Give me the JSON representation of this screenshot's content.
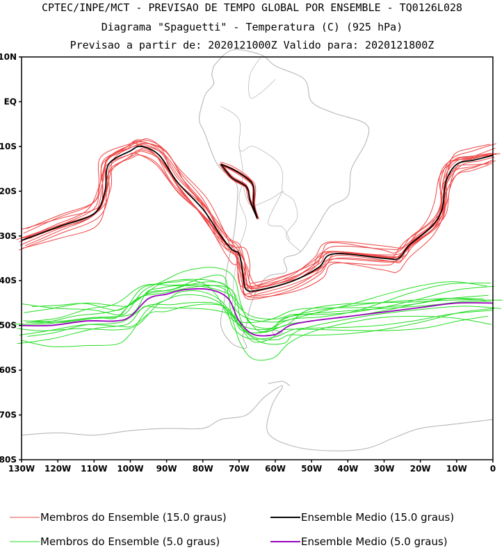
{
  "header": {
    "title_line1": "CPTEC/INPE/MCT - PREVISAO DE TEMPO GLOBAL POR ENSEMBLE - TQ0126L028",
    "title_line2": "Diagrama \"Spaguetti\" - Temperatura (C) (925 hPa)",
    "title_line3": "Previsao a partir de: 2020121000Z  Valido para: 2020121800Z"
  },
  "map": {
    "lat_labels": [
      "10N",
      "EQ",
      "10S",
      "20S",
      "30S",
      "40S",
      "50S",
      "60S",
      "70S",
      "80S"
    ],
    "lon_labels": [
      "130W",
      "120W",
      "110W",
      "100W",
      "90W",
      "80W",
      "70W",
      "60W",
      "50W",
      "40W",
      "30W",
      "20W",
      "10W",
      "0"
    ],
    "lat_range": [
      10,
      -80
    ],
    "lon_range": [
      -130,
      0
    ]
  },
  "legend": {
    "members_15_label": "Membros do Ensemble (15.0 graus)",
    "mean_15_label": "Ensemble Medio (15.0 graus)",
    "members_5_label": "Membros do Ensemble (5.0 graus)",
    "mean_5_label": "Ensemble Medio (5.0 graus)"
  },
  "colors": {
    "members_15": "#ee4444",
    "mean_15": "#000000",
    "members_5": "#22dd22",
    "mean_5": "#9900bb",
    "coastline": "#b0b0b0"
  },
  "isolines": {
    "mean_15": [
      [
        -130,
        -31
      ],
      [
        -120,
        -28
      ],
      [
        -110,
        -25
      ],
      [
        -107,
        -20
      ],
      [
        -106,
        -14
      ],
      [
        -100,
        -11
      ],
      [
        -97,
        -10
      ],
      [
        -92,
        -12
      ],
      [
        -87,
        -18
      ],
      [
        -80,
        -24
      ],
      [
        -75,
        -30
      ],
      [
        -72,
        -33
      ],
      [
        -70,
        -34
      ],
      [
        -69,
        -38
      ],
      [
        -68,
        -42
      ],
      [
        -64,
        -42
      ],
      [
        -55,
        -40
      ],
      [
        -48,
        -37
      ],
      [
        -44,
        -34
      ],
      [
        -30,
        -35
      ],
      [
        -26,
        -35
      ],
      [
        -23,
        -32
      ],
      [
        -17,
        -28
      ],
      [
        -14,
        -24
      ],
      [
        -13,
        -18
      ],
      [
        -10,
        -14
      ],
      [
        -5,
        -13
      ],
      [
        0,
        -12
      ]
    ],
    "mean_15_andes": [
      [
        -75,
        -14
      ],
      [
        -72,
        -15
      ],
      [
        -68,
        -17
      ],
      [
        -66,
        -19
      ],
      [
        -66,
        -23
      ],
      [
        -65,
        -26
      ],
      [
        -67,
        -22
      ],
      [
        -68,
        -19
      ],
      [
        -72,
        -17
      ],
      [
        -75,
        -14
      ]
    ],
    "mean_5": [
      [
        -130,
        -50
      ],
      [
        -122,
        -50
      ],
      [
        -112,
        -49
      ],
      [
        -104,
        -49
      ],
      [
        -100,
        -48
      ],
      [
        -95,
        -44
      ],
      [
        -90,
        -43
      ],
      [
        -85,
        -42
      ],
      [
        -78,
        -42
      ],
      [
        -73,
        -44
      ],
      [
        -70,
        -49
      ],
      [
        -66,
        -52
      ],
      [
        -60,
        -52
      ],
      [
        -56,
        -50
      ],
      [
        -50,
        -49
      ],
      [
        -40,
        -48
      ],
      [
        -30,
        -47
      ],
      [
        -20,
        -46
      ],
      [
        -10,
        -45
      ],
      [
        0,
        -45
      ]
    ]
  },
  "spread_offsets": {
    "members_15": [
      [
        0,
        0
      ],
      [
        1.2,
        -1.5
      ],
      [
        -1.0,
        1.2
      ],
      [
        2.0,
        0.8
      ],
      [
        -1.8,
        -1.0
      ],
      [
        0.8,
        2.2
      ],
      [
        -2.2,
        0.5
      ],
      [
        1.5,
        -2.4
      ],
      [
        -0.6,
        -2.0
      ],
      [
        2.6,
        1.8
      ],
      [
        -2.8,
        1.6
      ],
      [
        0.4,
        -3.0
      ],
      [
        1.8,
        2.8
      ],
      [
        -1.4,
        2.6
      ]
    ],
    "members_5": [
      [
        0,
        0
      ],
      [
        2.0,
        -3.0
      ],
      [
        -2.5,
        2.5
      ],
      [
        3.0,
        1.5
      ],
      [
        -3.0,
        -2.0
      ],
      [
        1.0,
        4.0
      ],
      [
        -4.0,
        1.0
      ],
      [
        2.5,
        -4.5
      ],
      [
        -1.0,
        -4.0
      ],
      [
        4.0,
        3.0
      ],
      [
        -3.5,
        3.5
      ],
      [
        0.5,
        -5.5
      ],
      [
        3.5,
        4.5
      ],
      [
        -2.0,
        5.0
      ]
    ]
  }
}
